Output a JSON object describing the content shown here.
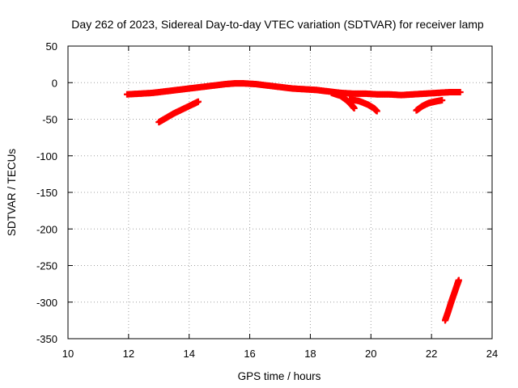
{
  "chart_data": {
    "type": "scatter",
    "title": "Day 262 of 2023, Sidereal Day-to-day VTEC variation (SDTVAR) for receiver lamp",
    "xlabel": "GPS time / hours",
    "ylabel": "SDTVAR / TECUs",
    "xlim": [
      10,
      24
    ],
    "ylim": [
      -350,
      50
    ],
    "xticks": [
      "10",
      "12",
      "14",
      "16",
      "18",
      "20",
      "22",
      "24"
    ],
    "yticks": [
      "50",
      "0",
      "-50",
      "-100",
      "-150",
      "-200",
      "-250",
      "-300",
      "-350"
    ],
    "grid": true,
    "marker_color": "#ff0000",
    "series": [
      {
        "points": [
          [
            11.95,
            -16
          ],
          [
            12.4,
            -15
          ],
          [
            12.8,
            -14
          ],
          [
            13.2,
            -12
          ],
          [
            13.6,
            -10
          ],
          [
            14.0,
            -8
          ],
          [
            14.4,
            -6
          ],
          [
            14.8,
            -4
          ],
          [
            15.2,
            -2
          ],
          [
            15.5,
            -1
          ],
          [
            15.8,
            -1
          ],
          [
            16.2,
            -2
          ],
          [
            16.6,
            -4
          ],
          [
            17.0,
            -6
          ],
          [
            17.4,
            -8
          ],
          [
            17.8,
            -9
          ],
          [
            18.2,
            -10
          ],
          [
            18.6,
            -12
          ],
          [
            19.0,
            -14
          ],
          [
            19.4,
            -15
          ],
          [
            19.8,
            -15
          ],
          [
            20.2,
            -16
          ],
          [
            20.6,
            -16
          ],
          [
            21.0,
            -17
          ],
          [
            21.4,
            -16
          ],
          [
            21.8,
            -15
          ],
          [
            22.2,
            -14
          ],
          [
            22.6,
            -13
          ],
          [
            22.95,
            -13
          ]
        ]
      },
      {
        "points": [
          [
            13.0,
            -54
          ],
          [
            13.25,
            -48
          ],
          [
            13.5,
            -42
          ],
          [
            13.8,
            -36
          ],
          [
            14.1,
            -30
          ],
          [
            14.3,
            -26
          ]
        ]
      },
      {
        "points": [
          [
            18.7,
            -14
          ],
          [
            19.0,
            -18
          ],
          [
            19.2,
            -24
          ],
          [
            19.35,
            -30
          ],
          [
            19.45,
            -35
          ]
        ]
      },
      {
        "points": [
          [
            19.3,
            -23
          ],
          [
            19.6,
            -25
          ],
          [
            19.9,
            -30
          ],
          [
            20.1,
            -35
          ],
          [
            20.2,
            -39
          ]
        ]
      },
      {
        "points": [
          [
            21.5,
            -38
          ],
          [
            21.7,
            -32
          ],
          [
            21.9,
            -28
          ],
          [
            22.1,
            -26
          ],
          [
            22.35,
            -24
          ]
        ]
      },
      {
        "points": [
          [
            22.45,
            -325
          ],
          [
            22.55,
            -313
          ],
          [
            22.65,
            -300
          ],
          [
            22.75,
            -288
          ],
          [
            22.85,
            -276
          ],
          [
            22.9,
            -270
          ]
        ]
      }
    ]
  }
}
